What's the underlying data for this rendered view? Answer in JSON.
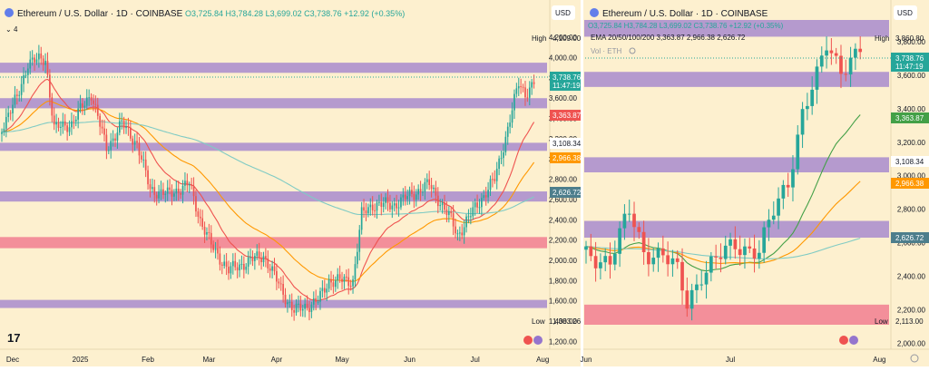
{
  "colors": {
    "background": "#fdf0cf",
    "up": "#26a69a",
    "down": "#ef5350",
    "zone_purple": "#9575cd",
    "zone_pink": "#ef6f88",
    "ema20": "#ef5350",
    "ema50": "#ff9800",
    "ema200": "#80cbc4",
    "ema100": "#43a047"
  },
  "left_chart": {
    "header": {
      "title": "Ethereum / U.S. Dollar · 1D · COINBASE",
      "ohlc": "O3,725.84 H3,784.28 L3,699.02 C3,738.76 +12.92 (+0.35%)",
      "indicator_count": "4",
      "currency": "USD"
    },
    "labels": {
      "high_label": "High",
      "high_value": "4,109.00",
      "low_label": "Low",
      "low_value": "1,383.26",
      "price": "3,738.76",
      "countdown": "11:47:19",
      "ema20": "3,363.87",
      "ema50": "2,966.38",
      "ema200": "2,626.72",
      "level": "3,108.34",
      "logo": "17"
    },
    "y_ticks": [
      "4,200.00",
      "4,000.00",
      "3,800.00",
      "3,600.00",
      "3,400.00",
      "3,200.00",
      "3,000.00",
      "2,800.00",
      "2,600.00",
      "2,400.00",
      "2,200.00",
      "2,000.00",
      "1,800.00",
      "1,600.00",
      "1,400.00",
      "1,200.00"
    ],
    "x_ticks": [
      "Dec",
      "2025",
      "Feb",
      "Mar",
      "Apr",
      "May",
      "Jun",
      "Jul",
      "Aug"
    ]
  },
  "right_chart": {
    "header": {
      "title": "Ethereum / U.S. Dollar · 1D · COINBASE",
      "ohlc": "O3,725.84 H3,784.28 L3,699.02 C3,738.76 +12.92 (+0.35%)",
      "ema_line": "EMA 20/50/100/200  3,363.87  2,966.38  2,626.72",
      "vol": "Vol · ETH",
      "currency": "USD"
    },
    "labels": {
      "high_label": "High",
      "high_value": "3,860.80",
      "low_label": "Low",
      "low_value": "2,113.00",
      "price": "3,738.76",
      "countdown": "11:47:19",
      "ema20": "3,363.87",
      "ema50": "2,966.38",
      "ema200": "2,626.72",
      "level": "3,108.34"
    },
    "y_ticks": [
      "3,800.00",
      "3,600.00",
      "3,400.00",
      "3,200.00",
      "3,000.00",
      "2,800.00",
      "2,600.00",
      "2,400.00",
      "2,200.00",
      "2,000.00"
    ],
    "x_ticks": [
      "Jun",
      "Jul",
      "Aug"
    ]
  },
  "chart_data": [
    {
      "type": "candlestick",
      "title": "Ethereum / U.S. Dollar · 1D · COINBASE",
      "symbol": "ETHUSD",
      "interval": "1D",
      "x_ticks": [
        "Dec",
        "2025",
        "Feb",
        "Mar",
        "Apr",
        "May",
        "Jun",
        "Jul",
        "Aug"
      ],
      "ylim": [
        1150,
        4300
      ],
      "close_path": [
        {
          "date": "2024-11-26",
          "close": 3320
        },
        {
          "date": "2024-12-03",
          "close": 3600
        },
        {
          "date": "2024-12-08",
          "close": 3950
        },
        {
          "date": "2024-12-16",
          "close": 3990
        },
        {
          "date": "2024-12-20",
          "close": 3300
        },
        {
          "date": "2024-12-28",
          "close": 3350
        },
        {
          "date": "2025-01-06",
          "close": 3650
        },
        {
          "date": "2025-01-13",
          "close": 3100
        },
        {
          "date": "2025-01-20",
          "close": 3350
        },
        {
          "date": "2025-01-27",
          "close": 3150
        },
        {
          "date": "2025-02-02",
          "close": 2700
        },
        {
          "date": "2025-02-10",
          "close": 2650
        },
        {
          "date": "2025-02-20",
          "close": 2750
        },
        {
          "date": "2025-02-25",
          "close": 2400
        },
        {
          "date": "2025-03-02",
          "close": 2150
        },
        {
          "date": "2025-03-10",
          "close": 1900
        },
        {
          "date": "2025-03-20",
          "close": 2000
        },
        {
          "date": "2025-03-26",
          "close": 2050
        },
        {
          "date": "2025-04-06",
          "close": 1600
        },
        {
          "date": "2025-04-09",
          "close": 1500
        },
        {
          "date": "2025-04-20",
          "close": 1600
        },
        {
          "date": "2025-04-25",
          "close": 1800
        },
        {
          "date": "2025-05-06",
          "close": 1800
        },
        {
          "date": "2025-05-10",
          "close": 2450
        },
        {
          "date": "2025-05-15",
          "close": 2550
        },
        {
          "date": "2025-05-25",
          "close": 2550
        },
        {
          "date": "2025-06-10",
          "close": 2750
        },
        {
          "date": "2025-06-20",
          "close": 2400
        },
        {
          "date": "2025-06-23",
          "close": 2250
        },
        {
          "date": "2025-07-02",
          "close": 2550
        },
        {
          "date": "2025-07-10",
          "close": 2800
        },
        {
          "date": "2025-07-16",
          "close": 3300
        },
        {
          "date": "2025-07-21",
          "close": 3750
        },
        {
          "date": "2025-07-24",
          "close": 3650
        },
        {
          "date": "2025-07-28",
          "close": 3738.76
        }
      ],
      "last": {
        "open": 3725.84,
        "high": 3784.28,
        "low": 3699.02,
        "close": 3738.76,
        "change": 12.92,
        "change_pct": 0.35
      },
      "period_high": 4109.0,
      "period_low": 1383.26,
      "ema": {
        "ema20": 3363.87,
        "ema50": 2966.38,
        "ema200": 2626.72
      },
      "levels": [
        3108.34
      ],
      "zones": [
        {
          "color": "purple",
          "from": 3850,
          "to": 3950
        },
        {
          "color": "purple",
          "from": 3500,
          "to": 3600
        },
        {
          "color": "purple",
          "from": 3080,
          "to": 3160
        },
        {
          "color": "purple",
          "from": 2580,
          "to": 2680
        },
        {
          "color": "pink",
          "from": 2120,
          "to": 2230
        },
        {
          "color": "purple",
          "from": 1530,
          "to": 1610
        }
      ]
    },
    {
      "type": "candlestick",
      "title": "Ethereum / U.S. Dollar · 1D · COINBASE",
      "symbol": "ETHUSD",
      "interval": "1D",
      "x_ticks": [
        "Jun",
        "Jul",
        "Aug"
      ],
      "ylim": [
        1980,
        3930
      ],
      "close_path": [
        {
          "date": "2025-06-01",
          "close": 2520
        },
        {
          "date": "2025-06-06",
          "close": 2500
        },
        {
          "date": "2025-06-10",
          "close": 2780
        },
        {
          "date": "2025-06-13",
          "close": 2550
        },
        {
          "date": "2025-06-17",
          "close": 2530
        },
        {
          "date": "2025-06-20",
          "close": 2420
        },
        {
          "date": "2025-06-22",
          "close": 2240
        },
        {
          "date": "2025-06-25",
          "close": 2420
        },
        {
          "date": "2025-07-02",
          "close": 2590
        },
        {
          "date": "2025-07-07",
          "close": 2550
        },
        {
          "date": "2025-07-10",
          "close": 2780
        },
        {
          "date": "2025-07-13",
          "close": 2970
        },
        {
          "date": "2025-07-16",
          "close": 3380
        },
        {
          "date": "2025-07-19",
          "close": 3580
        },
        {
          "date": "2025-07-21",
          "close": 3780
        },
        {
          "date": "2025-07-24",
          "close": 3650
        },
        {
          "date": "2025-07-28",
          "close": 3738.76
        }
      ],
      "last": {
        "open": 3725.84,
        "high": 3784.28,
        "low": 3699.02,
        "close": 3738.76,
        "change": 12.92,
        "change_pct": 0.35
      },
      "period_high": 3860.8,
      "period_low": 2113.0,
      "ema": {
        "ema20": 3363.87,
        "ema50": 2966.38,
        "ema200": 2626.72
      },
      "levels": [
        3108.34
      ],
      "zones": [
        {
          "color": "purple",
          "from": 3830,
          "to": 3930
        },
        {
          "color": "purple",
          "from": 3530,
          "to": 3620
        },
        {
          "color": "purple",
          "from": 3020,
          "to": 3110
        },
        {
          "color": "purple",
          "from": 2630,
          "to": 2730
        },
        {
          "color": "pink",
          "from": 2110,
          "to": 2230
        }
      ]
    }
  ]
}
